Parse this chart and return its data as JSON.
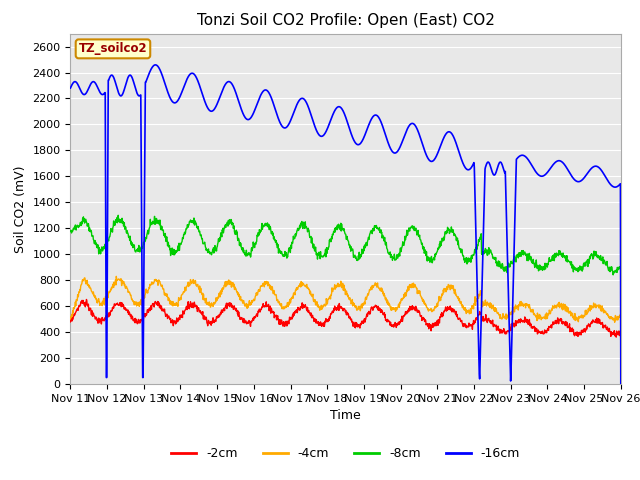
{
  "title": "Tonzi Soil CO2 Profile: Open (East) CO2",
  "xlabel": "Time",
  "ylabel": "Soil CO2 (mV)",
  "ylim": [
    0,
    2700
  ],
  "yticks": [
    0,
    200,
    400,
    600,
    800,
    1000,
    1200,
    1400,
    1600,
    1800,
    2000,
    2200,
    2400,
    2600
  ],
  "xtick_labels": [
    "Nov 11",
    "Nov 12",
    "Nov 13",
    "Nov 14",
    "Nov 15",
    "Nov 16",
    "Nov 17",
    "Nov 18",
    "Nov 19",
    "Nov 20",
    "Nov 21",
    "Nov 22",
    "Nov 23",
    "Nov 24",
    "Nov 25",
    "Nov 26"
  ],
  "legend_labels": [
    "-2cm",
    "-4cm",
    "-8cm",
    "-16cm"
  ],
  "line_colors": [
    "#ff0000",
    "#ffaa00",
    "#00cc00",
    "#0000ff"
  ],
  "annotation_text": "TZ_soilco2",
  "annotation_bg": "#ffffcc",
  "annotation_border": "#cc8800",
  "annotation_text_color": "#990000",
  "fig_bg_color": "#ffffff",
  "plot_bg_color": "#e8e8e8",
  "grid_color": "#ffffff",
  "n_days": 15,
  "ppd": 96
}
